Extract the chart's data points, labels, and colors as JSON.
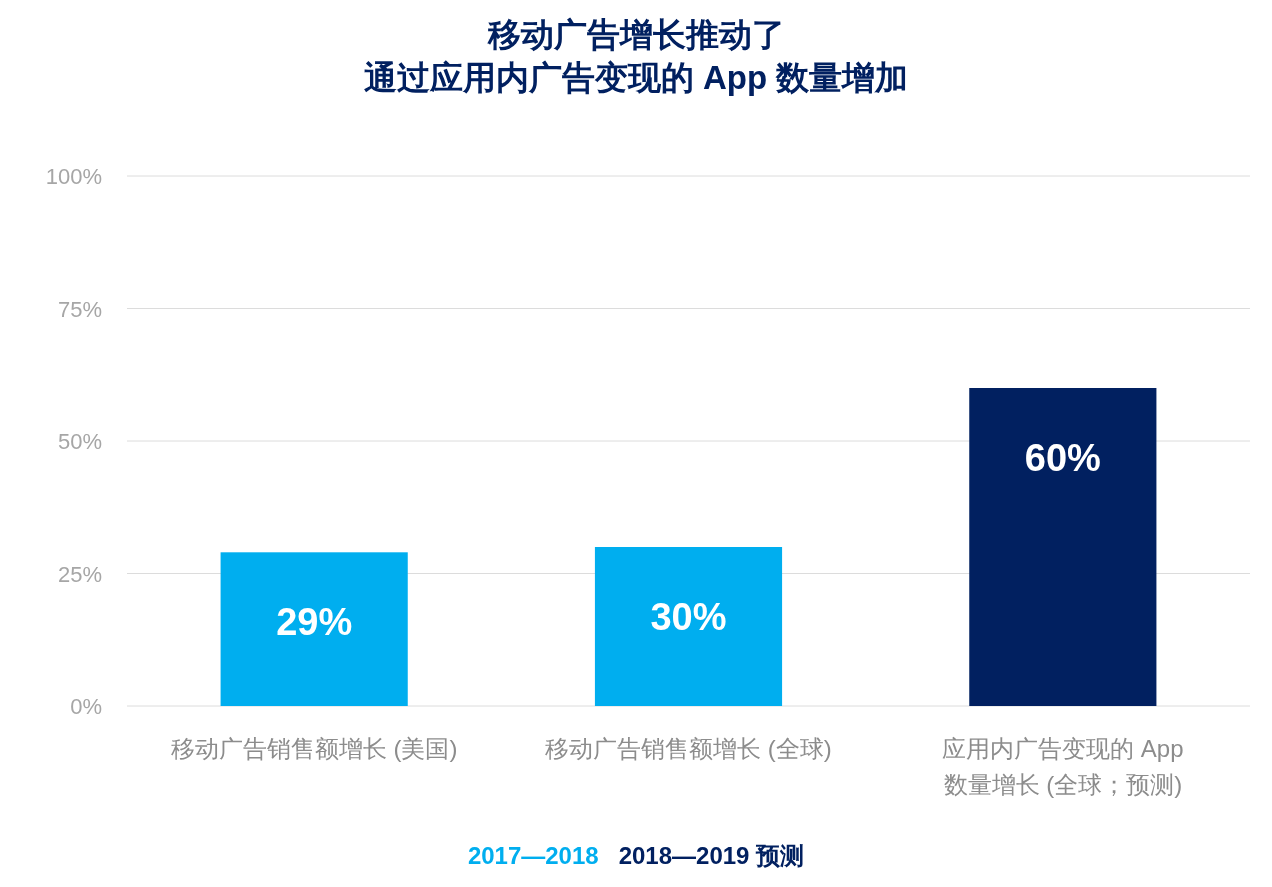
{
  "chart_data": {
    "type": "bar",
    "title": "移动广告增长推动了",
    "subtitle": "通过应用内广告变现的 App 数量增加",
    "categories": [
      "移动广告销售额增长 (美国)",
      "移动广告销售额增长 (全球)",
      "应用内广告变现的 App\n数量增长 (全球；预测)"
    ],
    "series": [
      {
        "name": "2017—2018",
        "color": "#00aeef",
        "values": [
          29,
          30,
          null
        ]
      },
      {
        "name": "2018—2019 预测",
        "color": "#012060",
        "values": [
          null,
          null,
          60
        ]
      }
    ],
    "ylim": [
      0,
      100
    ],
    "yticks": [
      {
        "value": 0,
        "label": "0%"
      },
      {
        "value": 25,
        "label": "25%"
      },
      {
        "value": 50,
        "label": "50%"
      },
      {
        "value": 75,
        "label": "75%"
      },
      {
        "value": 100,
        "label": "100%"
      }
    ],
    "value_labels": [
      [
        "29%",
        "30%",
        null
      ],
      [
        null,
        null,
        "60%"
      ]
    ],
    "grid": "y",
    "legend": "bottom"
  }
}
